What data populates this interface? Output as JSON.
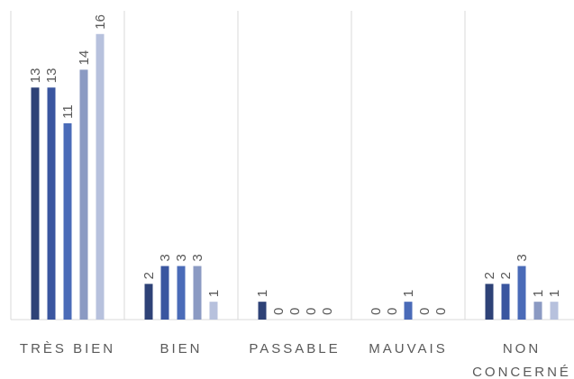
{
  "chart_data": {
    "type": "bar",
    "categories": [
      [
        "TRÈS BIEN"
      ],
      [
        "BIEN"
      ],
      [
        "PASSABLE"
      ],
      [
        "MAUVAIS"
      ],
      [
        "NON",
        "CONCERNÉ"
      ]
    ],
    "series": [
      {
        "values": [
          13,
          2,
          1,
          0,
          2
        ],
        "color": "#2E4277"
      },
      {
        "values": [
          13,
          3,
          0,
          0,
          2
        ],
        "color": "#3A56A0"
      },
      {
        "values": [
          11,
          3,
          0,
          1,
          3
        ],
        "color": "#4A6BB8"
      },
      {
        "values": [
          14,
          3,
          0,
          0,
          1
        ],
        "color": "#8B9AC3"
      },
      {
        "values": [
          16,
          1,
          0,
          0,
          1
        ],
        "color": "#B7C1DD"
      }
    ],
    "ylim": [
      0,
      17.3
    ],
    "grid": "vertical separators",
    "legend": "none",
    "title": "",
    "xlabel": "",
    "ylabel": ""
  }
}
